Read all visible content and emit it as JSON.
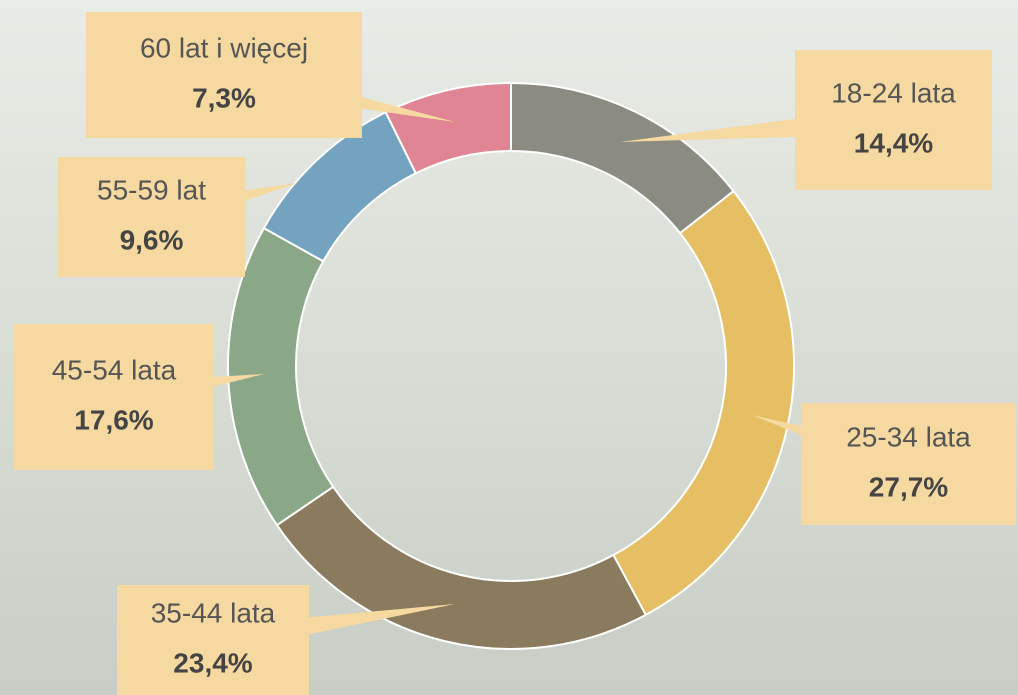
{
  "chart_data": {
    "type": "donut",
    "categories": [
      "18-24 lata",
      "25-34 lata",
      "35-44 lata",
      "45-54 lata",
      "55-59 lat",
      "60 lat i więcej"
    ],
    "values": [
      14.4,
      27.7,
      23.4,
      17.6,
      9.6,
      7.3
    ],
    "value_labels": [
      "14,4%",
      "27,7%",
      "23,4%",
      "17,6%",
      "9,6%",
      "7,3%"
    ],
    "colors": [
      "#8c8b82",
      "#e6bf64",
      "#8a7a5e",
      "#8aa888",
      "#74a3c0",
      "#e08594"
    ]
  }
}
